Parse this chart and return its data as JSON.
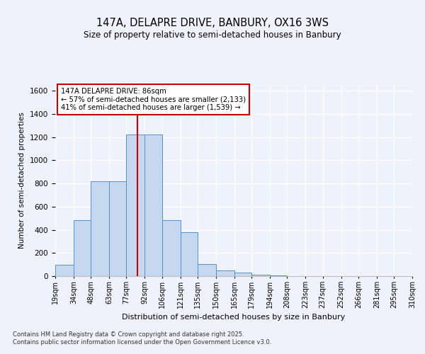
{
  "title1": "147A, DELAPRE DRIVE, BANBURY, OX16 3WS",
  "title2": "Size of property relative to semi-detached houses in Banbury",
  "xlabel": "Distribution of semi-detached houses by size in Banbury",
  "ylabel": "Number of semi-detached properties",
  "bin_labels": [
    "19sqm",
    "34sqm",
    "48sqm",
    "63sqm",
    "77sqm",
    "92sqm",
    "106sqm",
    "121sqm",
    "135sqm",
    "150sqm",
    "165sqm",
    "179sqm",
    "194sqm",
    "208sqm",
    "223sqm",
    "237sqm",
    "252sqm",
    "266sqm",
    "281sqm",
    "295sqm",
    "310sqm"
  ],
  "bin_edges": [
    19,
    34,
    48,
    63,
    77,
    92,
    106,
    121,
    135,
    150,
    165,
    179,
    194,
    208,
    223,
    237,
    252,
    266,
    281,
    295,
    310
  ],
  "values": [
    100,
    480,
    820,
    820,
    1220,
    1220,
    480,
    380,
    105,
    50,
    30,
    15,
    8,
    2,
    0,
    0,
    0,
    0,
    0,
    0
  ],
  "bar_color": "#c5d8f0",
  "bar_edge_color": "#5590c8",
  "vline_x": 86,
  "vline_color": "#cc0000",
  "annotation_title": "147A DELAPRE DRIVE: 86sqm",
  "annotation_line1": "← 57% of semi-detached houses are smaller (2,133)",
  "annotation_line2": "41% of semi-detached houses are larger (1,539) →",
  "annotation_box_color": "#ffffff",
  "annotation_box_edge": "#cc0000",
  "ylim": [
    0,
    1650
  ],
  "yticks": [
    0,
    200,
    400,
    600,
    800,
    1000,
    1200,
    1400,
    1600
  ],
  "footer1": "Contains HM Land Registry data © Crown copyright and database right 2025.",
  "footer2": "Contains public sector information licensed under the Open Government Licence v3.0.",
  "bg_color": "#eef2fa",
  "grid_color": "#ffffff"
}
